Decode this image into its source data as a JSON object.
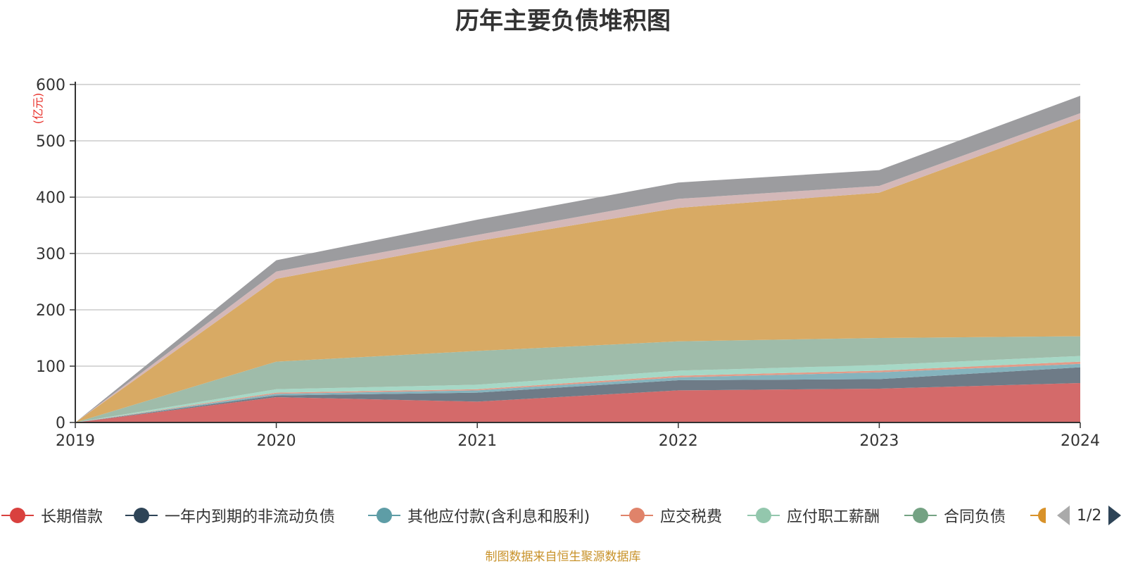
{
  "title": "历年主要负债堆积图",
  "unit_label": "(亿元)",
  "footer": "制图数据来自恒生聚源数据库",
  "pager": {
    "text": "1/2"
  },
  "legend_items": [
    {
      "name": "长期借款",
      "color": "#d9413e"
    },
    {
      "name": "一年内到期的非流动负债",
      "color": "#2e4457"
    },
    {
      "name": "其他应付款(含利息和股利)",
      "color": "#5e9da6"
    },
    {
      "name": "应交税费",
      "color": "#e0836a"
    },
    {
      "name": "应付职工薪酬",
      "color": "#93c7ad"
    },
    {
      "name": "合同负债",
      "color": "#74a283"
    }
  ],
  "chart_data": {
    "type": "area",
    "stacked": true,
    "title": "历年主要负债堆积图",
    "ylabel": "(亿元)",
    "x": [
      "2019",
      "2020",
      "2021",
      "2022",
      "2023",
      "2024"
    ],
    "ylim": [
      0,
      600
    ],
    "yticks": [
      0,
      100,
      200,
      300,
      400,
      500,
      600
    ],
    "grid": true,
    "legend_position": "bottom",
    "series": [
      {
        "name": "长期借款",
        "color": "#d46a6a",
        "values": [
          0,
          45,
          37,
          57,
          60,
          70
        ]
      },
      {
        "name": "一年内到期的非流动负债",
        "color": "#6e7b87",
        "values": [
          0,
          3,
          16,
          18,
          17,
          28
        ]
      },
      {
        "name": "其他应付款(含利息和股利)",
        "color": "#85b3bd",
        "values": [
          0,
          3,
          4,
          5,
          12,
          6
        ]
      },
      {
        "name": "应交税费",
        "color": "#e39b88",
        "values": [
          0,
          2,
          2,
          3,
          3,
          4
        ]
      },
      {
        "name": "应付职工薪酬",
        "color": "#a6d8c6",
        "values": [
          0,
          6,
          8,
          9,
          10,
          10
        ]
      },
      {
        "name": "合同负债",
        "color": "#9fbcaa",
        "values": [
          0,
          49,
          60,
          52,
          48,
          35
        ]
      },
      {
        "color": "#d8aa64",
        "values": [
          0,
          147,
          195,
          237,
          258,
          386
        ]
      },
      {
        "color": "#d4b8b8",
        "values": [
          0,
          13,
          11,
          16,
          12,
          10
        ]
      },
      {
        "color": "#9c9c9f",
        "values": [
          0,
          20,
          27,
          29,
          28,
          31
        ]
      }
    ]
  }
}
